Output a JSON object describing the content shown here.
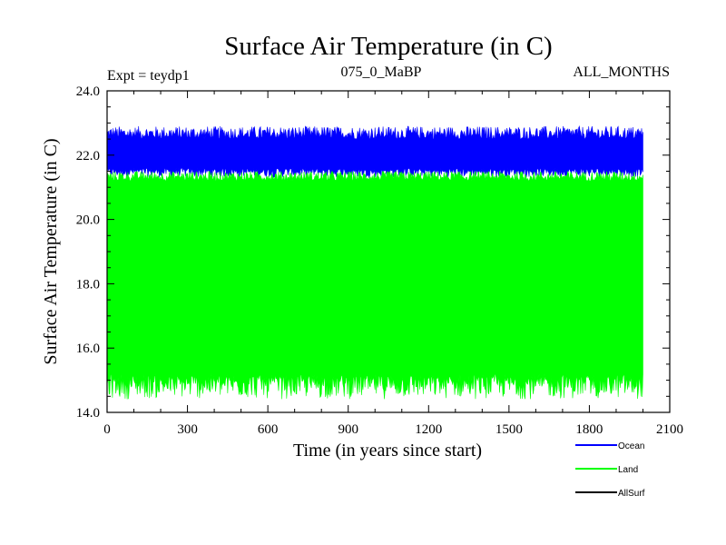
{
  "chart_data": {
    "type": "line",
    "title": "Surface Air Temperature (in C)",
    "subtitle_left": "Expt = teydp1",
    "subtitle_center": "075_0_MaBP",
    "subtitle_right": "ALL_MONTHS",
    "xlabel": "Time (in years since start)",
    "ylabel": "Surface Air Temperature (in C)",
    "xlim": [
      0,
      2100
    ],
    "ylim": [
      14.0,
      24.0
    ],
    "x_ticks": [
      "0",
      "300",
      "600",
      "900",
      "1200",
      "1500",
      "1800",
      "2100"
    ],
    "y_ticks": [
      "14.0",
      "16.0",
      "18.0",
      "20.0",
      "22.0",
      "24.0"
    ],
    "x_range_data": [
      0,
      2000
    ],
    "series": [
      {
        "name": "Ocean",
        "color": "#0000ff",
        "min_band": [
          21.3,
          21.6
        ],
        "max_band": [
          22.5,
          22.9
        ]
      },
      {
        "name": "Land",
        "color": "#00ff00",
        "min_band": [
          14.4,
          15.2
        ],
        "max_band": [
          21.2,
          21.5
        ]
      },
      {
        "name": "AllSurf",
        "color": "#000000",
        "min_band": [],
        "max_band": []
      }
    ]
  }
}
